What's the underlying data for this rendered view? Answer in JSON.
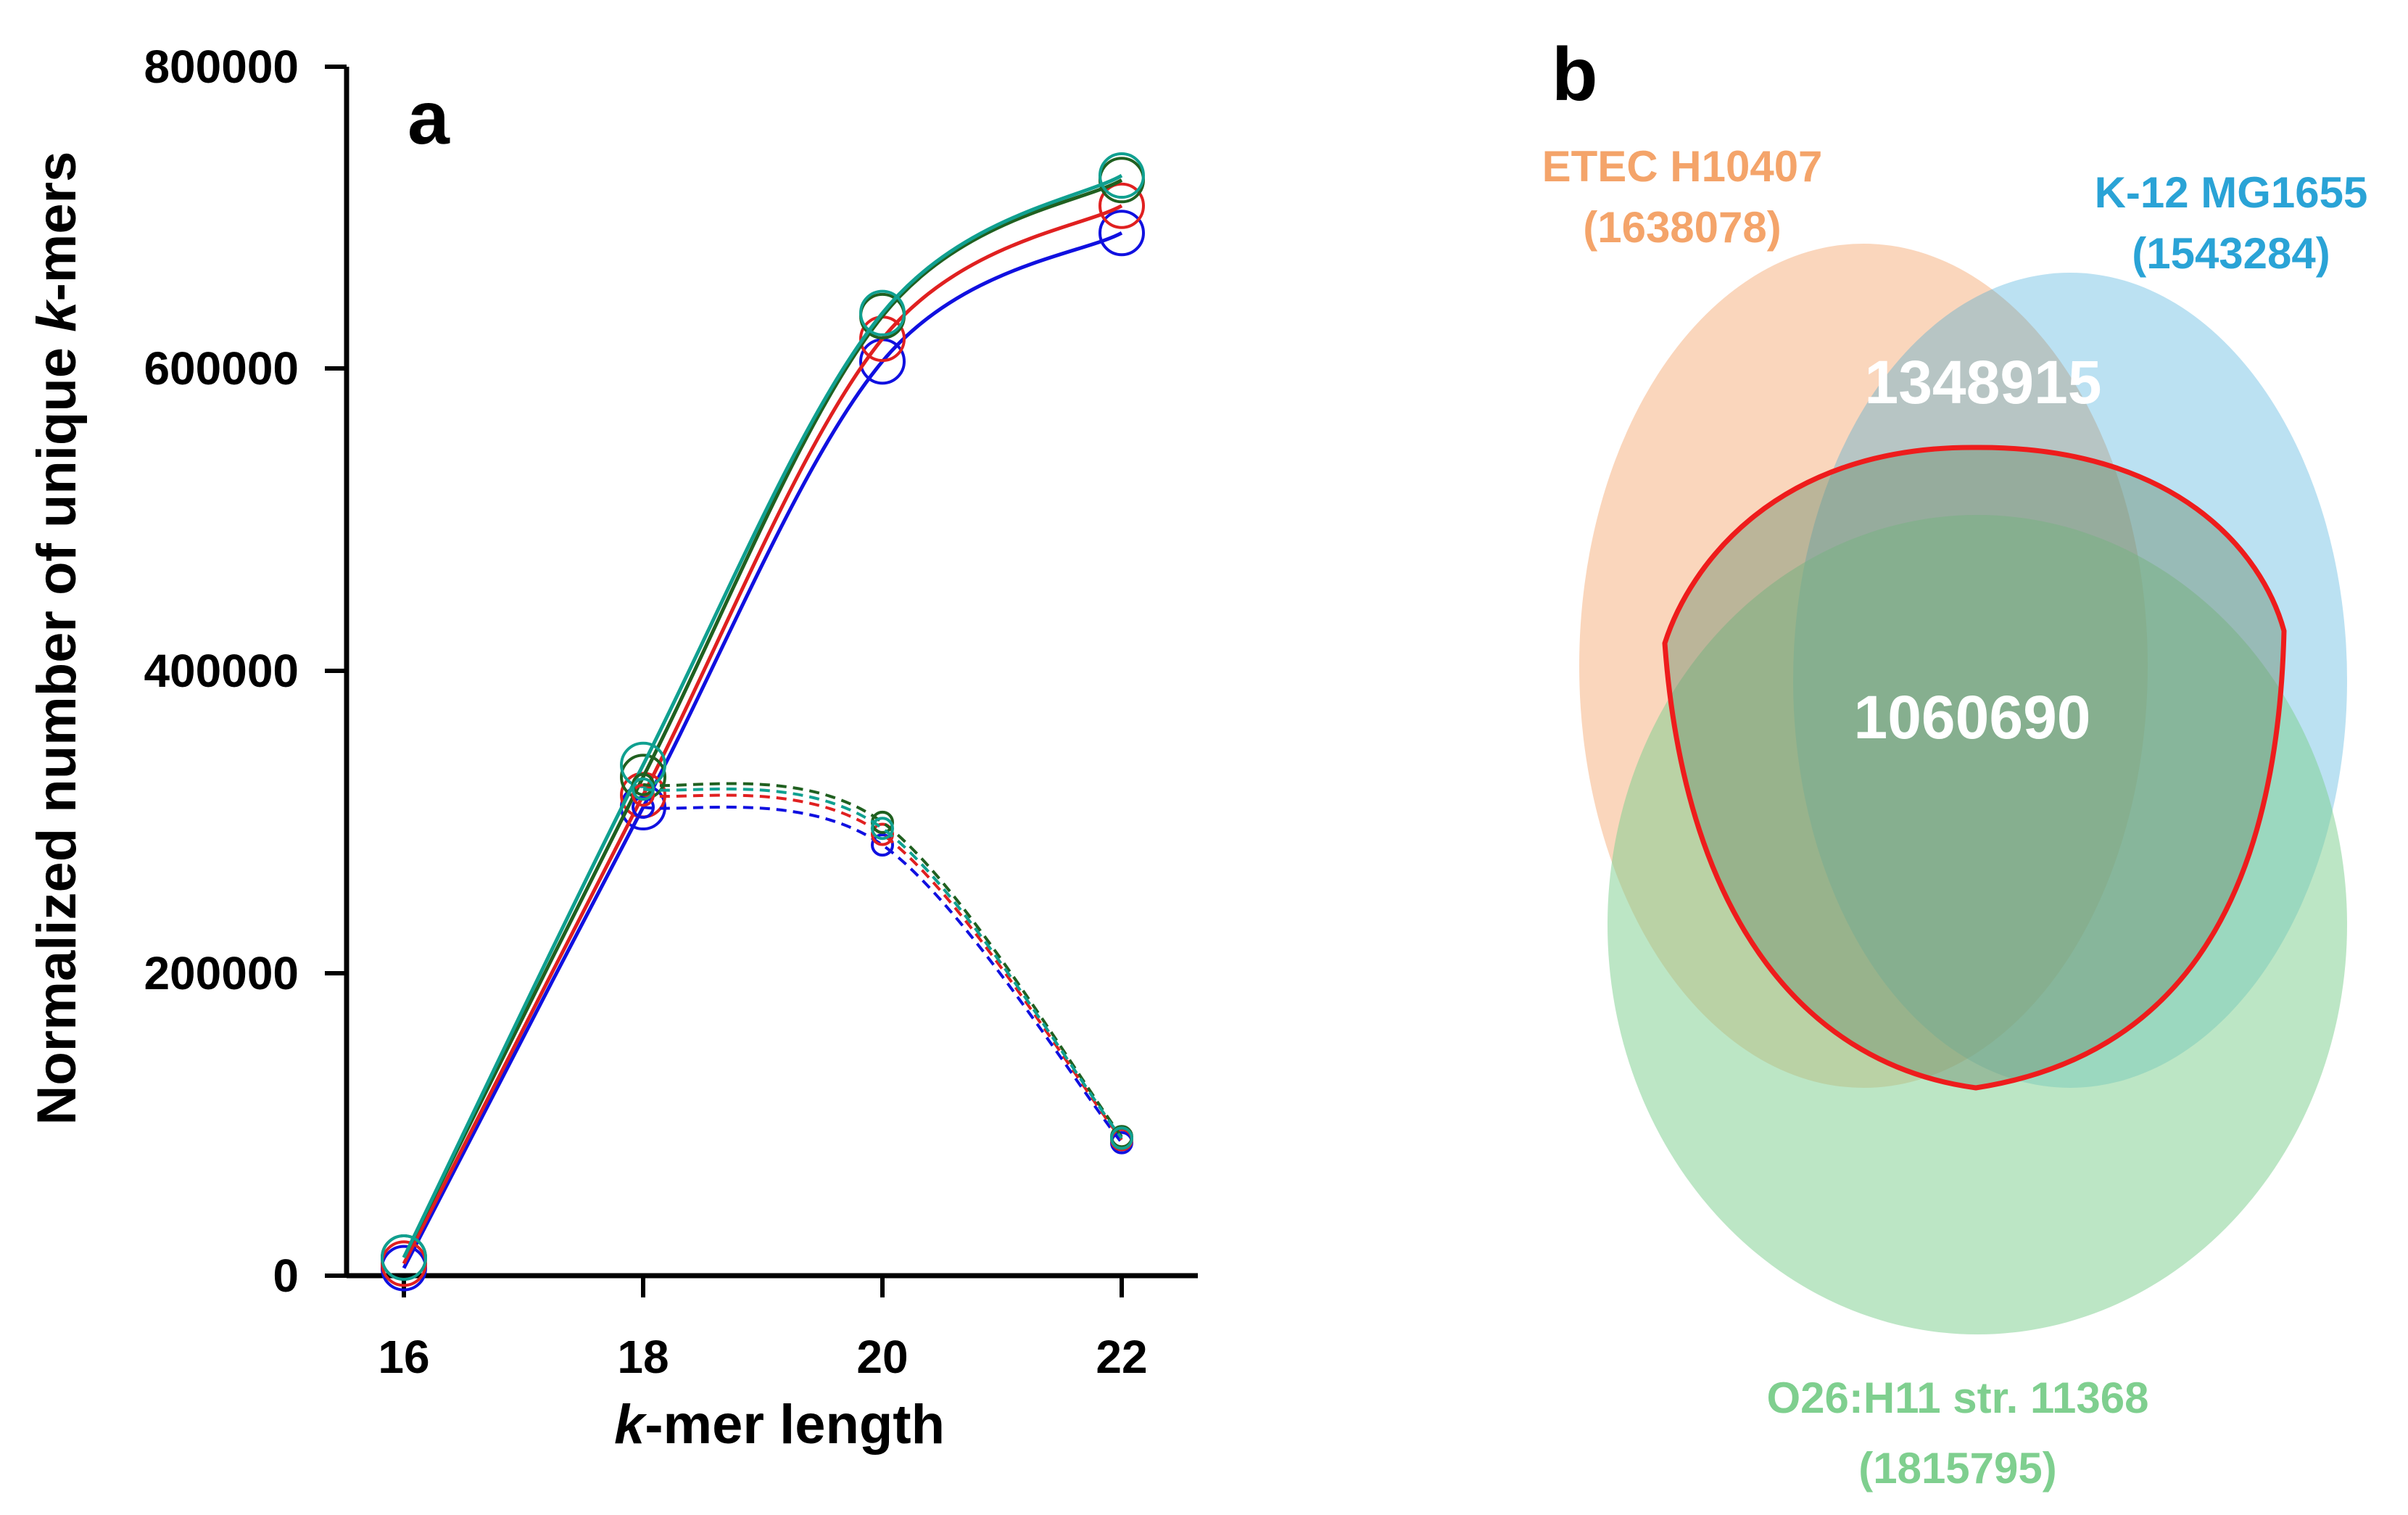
{
  "chart_data": [
    {
      "type": "line",
      "panel_label": "a",
      "xlabel_italic": "k",
      "xlabel_rest": "-mer length",
      "ylabel_prefix": "Normalized number of unique ",
      "ylabel_italic": "k",
      "ylabel_suffix": "-mers",
      "x": [
        16,
        18,
        20,
        22
      ],
      "x_ticks": [
        "16",
        "18",
        "20",
        "22"
      ],
      "y_ticks": [
        "0",
        "200000",
        "400000",
        "600000",
        "800000"
      ],
      "xlim": [
        15.6,
        22.7
      ],
      "ylim": [
        0,
        800000
      ],
      "series": [
        {
          "name": "solid-blue",
          "color": "#1010e0",
          "dashed": false,
          "values": [
            5000,
            310000,
            605000,
            690000
          ]
        },
        {
          "name": "solid-red",
          "color": "#e02020",
          "dashed": false,
          "values": [
            8000,
            318000,
            620000,
            708000
          ]
        },
        {
          "name": "solid-green",
          "color": "#206020",
          "dashed": false,
          "values": [
            12000,
            330000,
            635000,
            725000
          ]
        },
        {
          "name": "solid-teal",
          "color": "#10a090",
          "dashed": false,
          "values": [
            12000,
            338000,
            637000,
            728000
          ]
        },
        {
          "name": "dashed-blue",
          "color": "#1010e0",
          "dashed": true,
          "start_x": 18,
          "values": [
            null,
            310000,
            285000,
            88000
          ]
        },
        {
          "name": "dashed-red",
          "color": "#e02020",
          "dashed": true,
          "start_x": 18,
          "values": [
            null,
            318000,
            292000,
            90000
          ]
        },
        {
          "name": "dashed-green",
          "color": "#206020",
          "dashed": true,
          "start_x": 18,
          "values": [
            null,
            325000,
            300000,
            92000
          ]
        },
        {
          "name": "dashed-teal",
          "color": "#10a090",
          "dashed": true,
          "start_x": 18,
          "values": [
            null,
            322000,
            296000,
            91000
          ]
        }
      ]
    },
    {
      "type": "venn",
      "panel_label": "b",
      "sets": [
        {
          "name": "ETEC H10407",
          "count": "(1638078)",
          "color": "#f4a46a"
        },
        {
          "name": "K-12 MG1655",
          "count": "(1543284)",
          "color": "#2aa3d6"
        },
        {
          "name": "O26:H11 str. 11368",
          "count": "(1815795)",
          "color": "#7fcf8f"
        }
      ],
      "pairwise_overlap": "1348915",
      "triple_overlap": "1060690",
      "highlight_color": "#ee1c1c"
    }
  ]
}
